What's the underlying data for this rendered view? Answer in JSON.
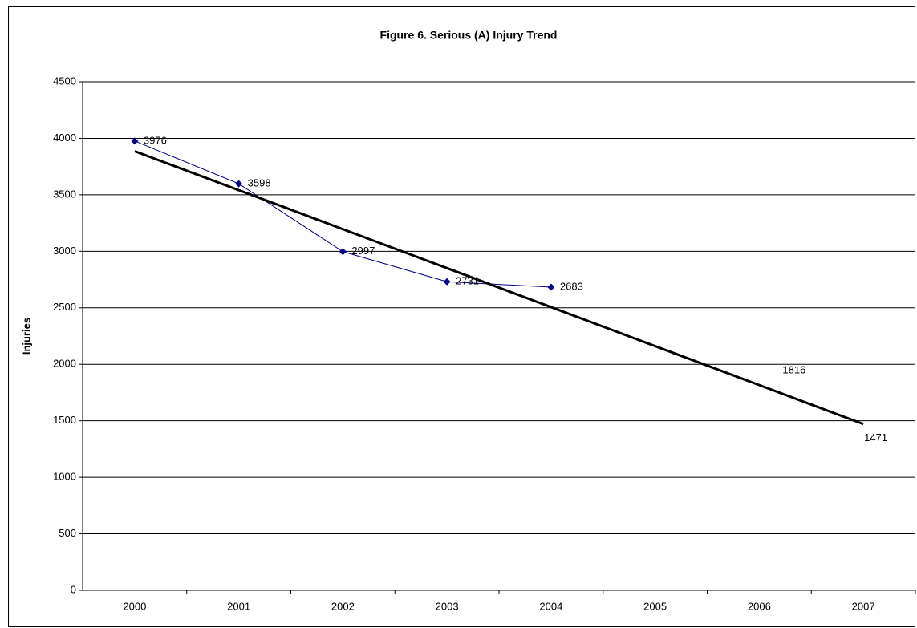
{
  "chart_data": {
    "type": "line",
    "title": "Figure 6.  Serious (A) Injury Trend",
    "y_label": "Injuries",
    "categories": [
      "2000",
      "2001",
      "2002",
      "2003",
      "2004",
      "2005",
      "2006",
      "2007"
    ],
    "series": [
      {
        "color": "#000080",
        "marker": "diamond",
        "line_width": 1,
        "labeled": true,
        "values": [
          3976,
          3598,
          2997,
          2731,
          2683,
          null,
          null,
          null
        ]
      },
      {
        "color": "#000000",
        "marker": "none",
        "line_width": 3,
        "label_indices": [
          6,
          7
        ],
        "values": [
          3886,
          3541,
          3196,
          2851,
          2506,
          2161,
          1816,
          1471
        ]
      }
    ],
    "ylim": [
      0,
      4500
    ],
    "yticks": [
      0,
      500,
      1000,
      1500,
      2000,
      2500,
      3000,
      3500,
      4000,
      4500
    ],
    "grid": true
  }
}
